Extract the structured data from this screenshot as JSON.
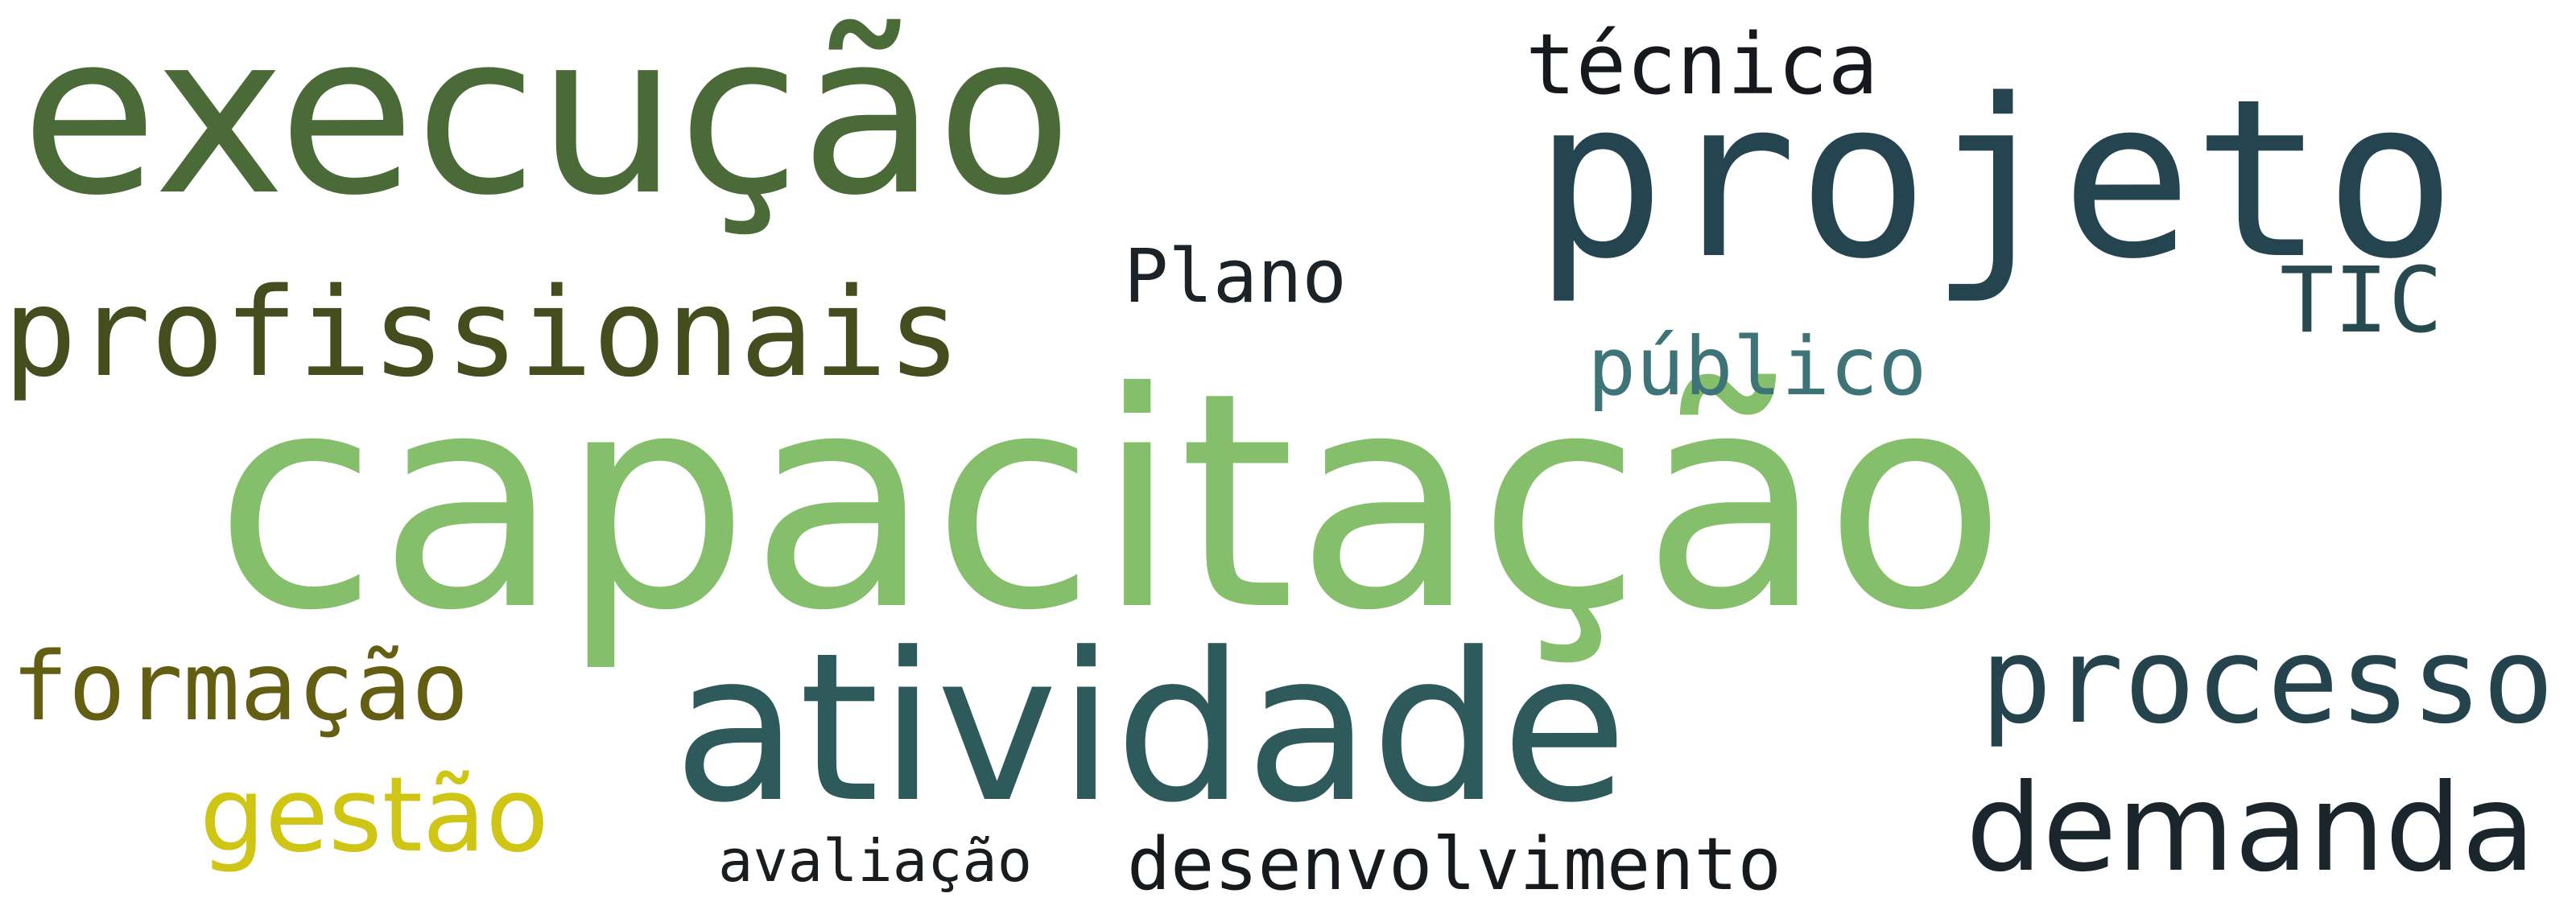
{
  "word_cloud": {
    "background": "#ffffff",
    "words": [
      {
        "text": "capacitação",
        "color": "#86bf6c"
      },
      {
        "text": "execução",
        "color": "#4a6a38"
      },
      {
        "text": "projeto",
        "color": "#244550"
      },
      {
        "text": "atividade",
        "color": "#2f5a5c"
      },
      {
        "text": "profissionais",
        "color": "#434d1e"
      },
      {
        "text": "processo",
        "color": "#25434c"
      },
      {
        "text": "demanda",
        "color": "#1b262c"
      },
      {
        "text": "formação",
        "color": "#645e12"
      },
      {
        "text": "gestão",
        "color": "#cfc514"
      },
      {
        "text": "técnica",
        "color": "#15191d"
      },
      {
        "text": "público",
        "color": "#3e7478"
      },
      {
        "text": "TIC",
        "color": "#264a50"
      },
      {
        "text": "Plano",
        "color": "#1b2328"
      },
      {
        "text": "desenvolvimento",
        "color": "#161a1d"
      },
      {
        "text": "avaliação",
        "color": "#1a1d1f"
      }
    ]
  }
}
